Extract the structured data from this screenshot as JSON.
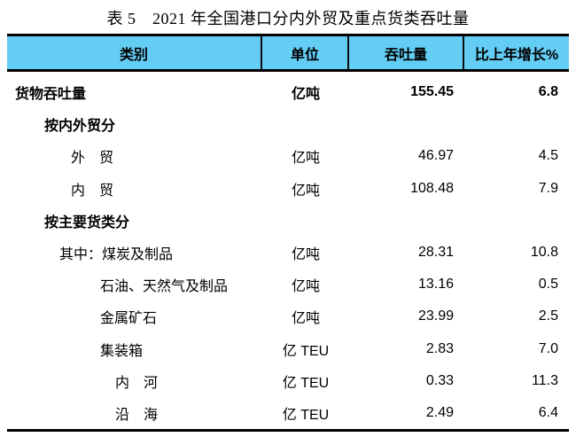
{
  "title": "表 5　2021 年全国港口分内外贸及重点货类吞吐量",
  "colors": {
    "header_bg": "#63CDF4",
    "rule": "#000000"
  },
  "table": {
    "headers": [
      "类别",
      "单位",
      "吞吐量",
      "比上年增长%"
    ],
    "rows": [
      {
        "label": "货物吞吐量",
        "unit": "亿吨",
        "value": "155.45",
        "growth": "6.8"
      },
      {
        "label": "按内外贸分",
        "unit": "",
        "value": "",
        "growth": ""
      },
      {
        "label": "外　贸",
        "unit": "亿吨",
        "value": "46.97",
        "growth": "4.5"
      },
      {
        "label": "内　贸",
        "unit": "亿吨",
        "value": "108.48",
        "growth": "7.9"
      },
      {
        "label": "按主要货类分",
        "unit": "",
        "value": "",
        "growth": ""
      },
      {
        "label": "其中：煤炭及制品",
        "unit": "亿吨",
        "value": "28.31",
        "growth": "10.8"
      },
      {
        "label": "石油、天然气及制品",
        "unit": "亿吨",
        "value": "13.16",
        "growth": "0.5"
      },
      {
        "label": "金属矿石",
        "unit": "亿吨",
        "value": "23.99",
        "growth": "2.5"
      },
      {
        "label": "集装箱",
        "unit": "亿 TEU",
        "value": "2.83",
        "growth": "7.0"
      },
      {
        "label": "内　河",
        "unit": "亿 TEU",
        "value": "0.33",
        "growth": "11.3"
      },
      {
        "label": "沿　海",
        "unit": "亿 TEU",
        "value": "2.49",
        "growth": "6.4"
      }
    ]
  }
}
